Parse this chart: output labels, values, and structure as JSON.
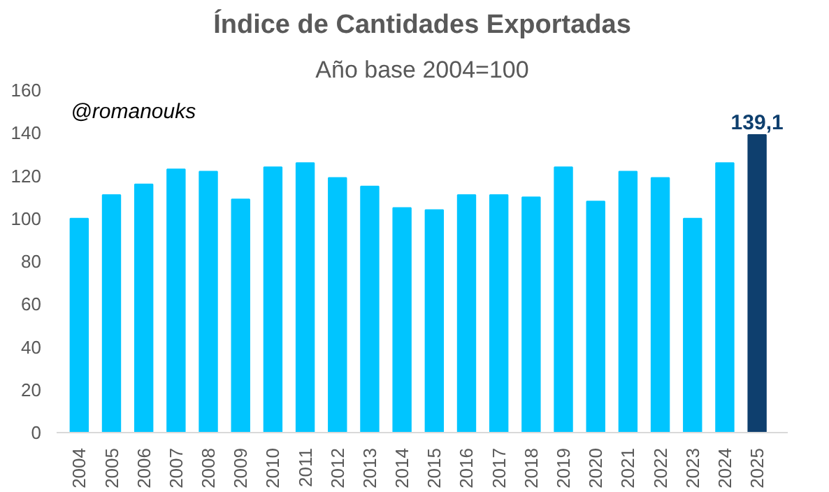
{
  "chart_data": {
    "type": "bar",
    "title": "Índice de Cantidades Exportadas",
    "subtitle": "Año base 2004=100",
    "annotations": [
      "@romanouks"
    ],
    "categories": [
      "2004",
      "2005",
      "2006",
      "2007",
      "2008",
      "2009",
      "2010",
      "2011",
      "2012",
      "2013",
      "2014",
      "2015",
      "2016",
      "2017",
      "2018",
      "2019",
      "2020",
      "2021",
      "2022",
      "2023",
      "2024",
      "2025"
    ],
    "values": [
      100,
      111,
      116,
      123,
      122,
      109,
      124,
      126,
      119,
      115,
      105,
      104,
      111,
      111,
      110,
      124,
      108,
      122,
      119,
      100,
      126,
      139.1
    ],
    "colors": [
      "#00c5ff",
      "#00c5ff",
      "#00c5ff",
      "#00c5ff",
      "#00c5ff",
      "#00c5ff",
      "#00c5ff",
      "#00c5ff",
      "#00c5ff",
      "#00c5ff",
      "#00c5ff",
      "#00c5ff",
      "#00c5ff",
      "#00c5ff",
      "#00c5ff",
      "#00c5ff",
      "#00c5ff",
      "#00c5ff",
      "#00c5ff",
      "#00c5ff",
      "#00c5ff",
      "#0e3f6e"
    ],
    "value_labels": [
      null,
      null,
      null,
      null,
      null,
      null,
      null,
      null,
      null,
      null,
      null,
      null,
      null,
      null,
      null,
      null,
      null,
      null,
      null,
      null,
      null,
      "139,1"
    ],
    "ylim": [
      0,
      160
    ],
    "yticks": [
      0,
      20,
      40,
      60,
      80,
      100,
      120,
      140,
      160
    ],
    "grid": false
  }
}
